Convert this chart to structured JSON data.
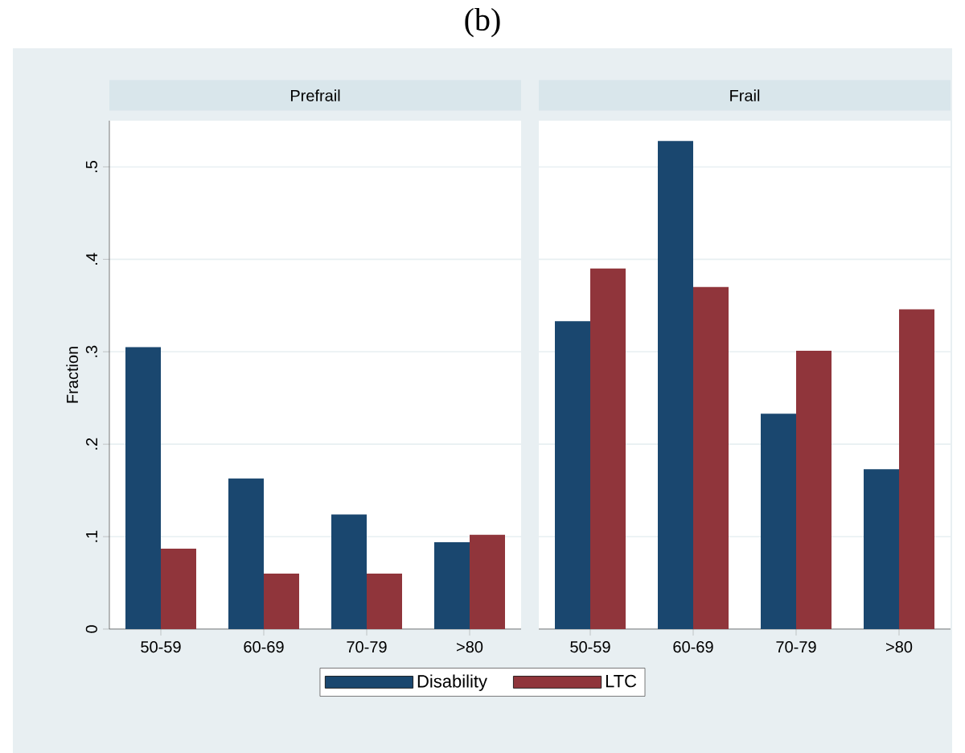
{
  "chart_data": [
    {
      "type": "bar",
      "title": "Prefrail",
      "ylabel": "Fraction",
      "annotations": [
        "(b)"
      ],
      "categories": [
        "50-59",
        "60-69",
        "70-79",
        ">80"
      ],
      "series": [
        {
          "name": "Disability",
          "color": "#1a476f",
          "values": [
            0.305,
            0.163,
            0.124,
            0.094
          ]
        },
        {
          "name": "LTC",
          "color": "#90353b",
          "values": [
            0.087,
            0.06,
            0.06,
            0.102
          ]
        }
      ],
      "ylim": [
        0,
        0.55
      ],
      "yticks": [
        0,
        {
          "value": 0.1,
          "label": ".1"
        },
        {
          "value": 0.2,
          "label": ".2"
        },
        {
          "value": 0.3,
          "label": ".3"
        },
        {
          "value": 0.4,
          "label": ".4"
        },
        {
          "value": 0.5,
          "label": ".5"
        }
      ],
      "grid": "y",
      "legend": "bottom"
    },
    {
      "type": "bar",
      "title": "Frail",
      "categories": [
        "50-59",
        "60-69",
        "70-79",
        ">80"
      ],
      "series": [
        {
          "color": "#1a476f",
          "values": [
            0.333,
            0.528,
            0.233,
            0.173
          ]
        },
        {
          "color": "#90353b",
          "values": [
            0.39,
            0.37,
            0.301,
            0.346
          ]
        }
      ],
      "ylim": [
        0,
        0.55
      ],
      "yticks": [
        {
          "value": 0,
          "label": null
        },
        {
          "value": 0.1,
          "label": null
        },
        {
          "value": 0.2,
          "label": null
        },
        {
          "value": 0.3,
          "label": null
        },
        {
          "value": 0.4,
          "label": null
        },
        {
          "value": 0.5,
          "label": null
        }
      ],
      "grid": "y",
      "tick_labels": "x"
    }
  ]
}
